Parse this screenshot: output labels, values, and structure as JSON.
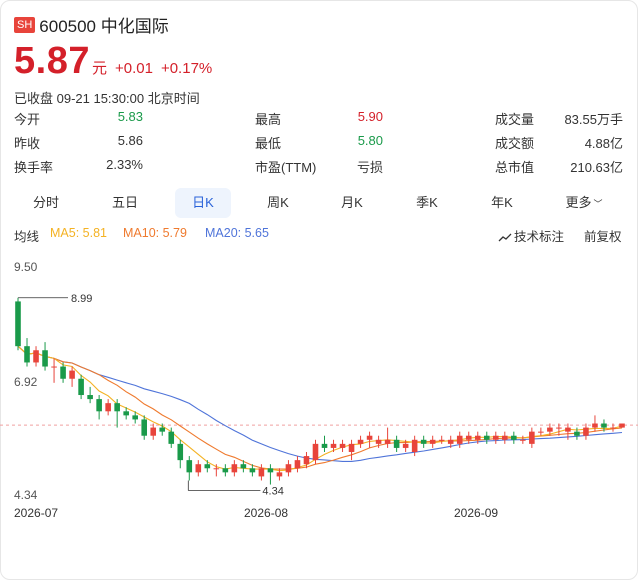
{
  "header": {
    "market": "SH",
    "title": "600500 中化国际"
  },
  "price": {
    "value": "5.87",
    "unit": "元",
    "change": "+0.01",
    "change_pct": "+0.17%"
  },
  "status": "已收盘 09-21 15:30:00 北京时间",
  "quote": {
    "open_label": "今开",
    "open": "5.83",
    "prev_close_label": "昨收",
    "prev_close": "5.86",
    "turnover_label": "换手率",
    "turnover": "2.33%",
    "high_label": "最高",
    "high": "5.90",
    "low_label": "最低",
    "low": "5.80",
    "pe_label": "市盈(TTM)",
    "pe": "亏损",
    "volume_label": "成交量",
    "volume": "83.55万手",
    "amount_label": "成交额",
    "amount": "4.88亿",
    "mktcap_label": "总市值",
    "mktcap": "210.63亿"
  },
  "tabs": [
    "分时",
    "五日",
    "日K",
    "周K",
    "月K",
    "季K",
    "年K",
    "更多"
  ],
  "active_tab": "日K",
  "indicators": {
    "label": "均线",
    "ma5": "MA5: 5.81",
    "ma10": "MA10: 5.79",
    "ma20": "MA20: 5.65",
    "tech_label": "技术标注",
    "adjust_label": "前复权"
  },
  "colors": {
    "up": "#e8443b",
    "down": "#1a9a4a",
    "ma5": "#f4b223",
    "ma10": "#ef7a2e",
    "ma20": "#4f74d9",
    "accent": "#2962d9"
  },
  "chart_data": {
    "type": "candlestick",
    "y_tick_labels": [
      "9.50",
      "6.92",
      "4.34"
    ],
    "ylim": [
      4.34,
      9.5
    ],
    "x_tick_labels": [
      "2026-07",
      "2026-08",
      "2026-09"
    ],
    "annotations": {
      "max": "8.99",
      "min": "4.34"
    },
    "reference_price": 5.86,
    "candles": [
      [
        8.9,
        7.8,
        8.99,
        7.7
      ],
      [
        7.8,
        7.4,
        8.0,
        7.3
      ],
      [
        7.4,
        7.7,
        7.8,
        7.3
      ],
      [
        7.7,
        7.3,
        7.9,
        7.2
      ],
      [
        7.3,
        7.3,
        7.5,
        6.9
      ],
      [
        7.3,
        7.0,
        7.4,
        6.9
      ],
      [
        7.0,
        7.2,
        7.3,
        6.8
      ],
      [
        7.0,
        6.6,
        7.1,
        6.5
      ],
      [
        6.6,
        6.5,
        6.8,
        6.4
      ],
      [
        6.5,
        6.2,
        6.6,
        6.0
      ],
      [
        6.2,
        6.4,
        6.5,
        6.1
      ],
      [
        6.4,
        6.2,
        6.5,
        5.8
      ],
      [
        6.2,
        6.1,
        6.3,
        6.0
      ],
      [
        6.1,
        6.0,
        6.2,
        5.9
      ],
      [
        6.0,
        5.6,
        6.1,
        5.5
      ],
      [
        5.6,
        5.8,
        5.9,
        5.5
      ],
      [
        5.8,
        5.7,
        5.9,
        5.6
      ],
      [
        5.7,
        5.4,
        5.8,
        5.3
      ],
      [
        5.4,
        5.0,
        5.5,
        4.8
      ],
      [
        5.0,
        4.7,
        5.1,
        4.5
      ],
      [
        4.7,
        4.9,
        5.0,
        4.6
      ],
      [
        4.9,
        4.8,
        5.0,
        4.7
      ],
      [
        4.8,
        4.8,
        4.9,
        4.6
      ],
      [
        4.8,
        4.7,
        4.9,
        4.6
      ],
      [
        4.7,
        4.9,
        5.0,
        4.6
      ],
      [
        4.9,
        4.8,
        5.0,
        4.7
      ],
      [
        4.8,
        4.7,
        4.9,
        4.6
      ],
      [
        4.6,
        4.8,
        4.9,
        4.5
      ],
      [
        4.8,
        4.7,
        4.9,
        4.4
      ],
      [
        4.6,
        4.7,
        4.8,
        4.5
      ],
      [
        4.7,
        4.9,
        5.0,
        4.6
      ],
      [
        4.8,
        5.0,
        5.1,
        4.7
      ],
      [
        4.9,
        5.1,
        5.2,
        4.8
      ],
      [
        5.0,
        5.4,
        5.5,
        4.9
      ],
      [
        5.4,
        5.3,
        5.6,
        5.2
      ],
      [
        5.3,
        5.4,
        5.5,
        5.2
      ],
      [
        5.3,
        5.4,
        5.5,
        5.2
      ],
      [
        5.2,
        5.4,
        5.5,
        5.0
      ],
      [
        5.4,
        5.5,
        5.6,
        5.3
      ],
      [
        5.5,
        5.6,
        5.7,
        5.3
      ],
      [
        5.4,
        5.5,
        5.6,
        5.3
      ],
      [
        5.4,
        5.5,
        5.8,
        5.3
      ],
      [
        5.5,
        5.3,
        5.6,
        5.2
      ],
      [
        5.3,
        5.4,
        5.5,
        5.2
      ],
      [
        5.2,
        5.5,
        5.6,
        5.1
      ],
      [
        5.5,
        5.4,
        5.6,
        5.3
      ],
      [
        5.4,
        5.5,
        5.6,
        5.3
      ],
      [
        5.5,
        5.5,
        5.6,
        5.4
      ],
      [
        5.4,
        5.5,
        5.6,
        5.3
      ],
      [
        5.4,
        5.6,
        5.7,
        5.3
      ],
      [
        5.5,
        5.6,
        5.7,
        5.4
      ],
      [
        5.5,
        5.6,
        5.7,
        5.4
      ],
      [
        5.6,
        5.5,
        5.7,
        5.4
      ],
      [
        5.5,
        5.6,
        5.7,
        5.4
      ],
      [
        5.5,
        5.6,
        5.7,
        5.4
      ],
      [
        5.6,
        5.5,
        5.7,
        5.4
      ],
      [
        5.5,
        5.5,
        5.6,
        5.4
      ],
      [
        5.4,
        5.7,
        5.8,
        5.3
      ],
      [
        5.7,
        5.7,
        5.8,
        5.6
      ],
      [
        5.7,
        5.8,
        5.9,
        5.6
      ],
      [
        5.8,
        5.8,
        5.9,
        5.6
      ],
      [
        5.7,
        5.8,
        5.9,
        5.5
      ],
      [
        5.7,
        5.6,
        5.8,
        5.5
      ],
      [
        5.6,
        5.8,
        5.9,
        5.5
      ],
      [
        5.8,
        5.9,
        6.1,
        5.7
      ],
      [
        5.9,
        5.8,
        6.0,
        5.7
      ],
      [
        5.8,
        5.8,
        5.9,
        5.7
      ],
      [
        5.8,
        5.9,
        5.9,
        5.8
      ]
    ]
  }
}
